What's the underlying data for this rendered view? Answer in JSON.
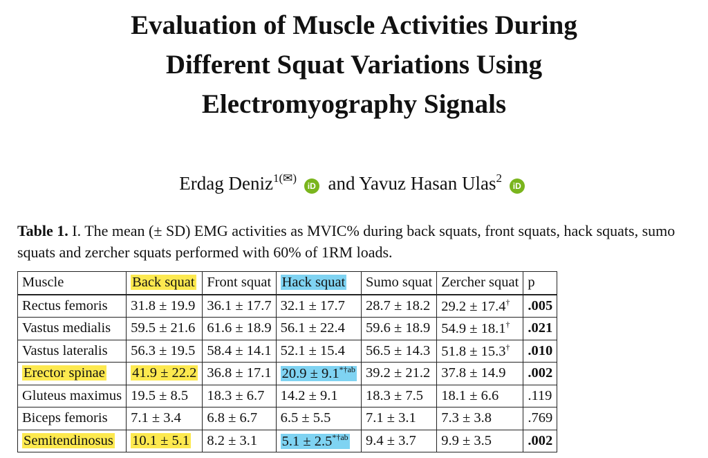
{
  "paper": {
    "title_lines": [
      "Evaluation of Muscle Activities During",
      "Different Squat Variations Using",
      "Electromyography Signals"
    ],
    "authors": [
      {
        "name": "Erdag Deniz",
        "sup": "1(✉)"
      },
      {
        "name": "Yavuz Hasan Ulas",
        "sup": "2"
      }
    ],
    "author_joiner": "and",
    "orcid_icon_label": "iD",
    "caption_label": "Table 1.",
    "caption_text": "I. The mean (± SD) EMG activities as MVIC% during back squats, front squats, hack squats, sumo squats and zercher squats performed with 60% of 1RM loads."
  },
  "table": {
    "headers": [
      "Muscle",
      "Back squat",
      "Front squat",
      "Hack squat",
      "Sumo squat",
      "Zercher squat",
      "p"
    ],
    "rows": [
      {
        "cells": [
          "Rectus femoris",
          "31.8 ± 19.9",
          "36.1 ± 17.7",
          "32.1 ± 17.7",
          "28.7 ± 18.2",
          "29.2 ± 17.4",
          ".005"
        ],
        "marks": [
          "",
          "",
          "",
          "",
          "",
          "†",
          ""
        ]
      },
      {
        "cells": [
          "Vastus medialis",
          "59.5 ± 21.6",
          "61.6 ± 18.9",
          "56.1 ± 22.4",
          "59.6 ± 18.9",
          "54.9 ± 18.1",
          ".021"
        ],
        "marks": [
          "",
          "",
          "",
          "",
          "",
          "†",
          ""
        ]
      },
      {
        "cells": [
          "Vastus lateralis",
          "56.3 ± 19.5",
          "58.4 ± 14.1",
          "52.1 ± 15.4",
          "56.5 ± 14.3",
          "51.8 ± 15.3",
          ".010"
        ],
        "marks": [
          "",
          "",
          "",
          "",
          "",
          "†",
          ""
        ]
      },
      {
        "cells": [
          "Erector spinae",
          "41.9 ± 22.2",
          "36.8 ± 17.1",
          "20.9 ± 9.1",
          "39.2 ± 21.2",
          "37.8 ± 14.9",
          ".002"
        ],
        "marks": [
          "",
          "",
          "",
          "*†ab",
          "",
          "",
          ""
        ]
      },
      {
        "cells": [
          "Gluteus maximus",
          "19.5 ± 8.5",
          "18.3 ± 6.7",
          "14.2 ± 9.1",
          "18.3 ± 7.5",
          "18.1 ± 6.6",
          ".119"
        ],
        "marks": [
          "",
          "",
          "",
          "",
          "",
          "",
          ""
        ]
      },
      {
        "cells": [
          "Biceps femoris",
          "7.1 ± 3.4",
          "6.8 ± 6.7",
          "6.5 ± 5.5",
          "7.1 ± 3.1",
          "7.3 ± 3.8",
          ".769"
        ],
        "marks": [
          "",
          "",
          "",
          "",
          "",
          "",
          ""
        ]
      },
      {
        "cells": [
          "Semitendinosus",
          "10.1 ± 5.1",
          "8.2 ± 3.1",
          "5.1 ± 2.5",
          "9.4 ± 3.7",
          "9.9 ± 3.5",
          ".002"
        ],
        "marks": [
          "",
          "",
          "",
          "*†ab",
          "",
          "",
          ""
        ]
      }
    ]
  },
  "highlights": {
    "yellow": "#fde94f",
    "cyan": "#7fd3f2",
    "orcid_green": "#7ab51d"
  }
}
